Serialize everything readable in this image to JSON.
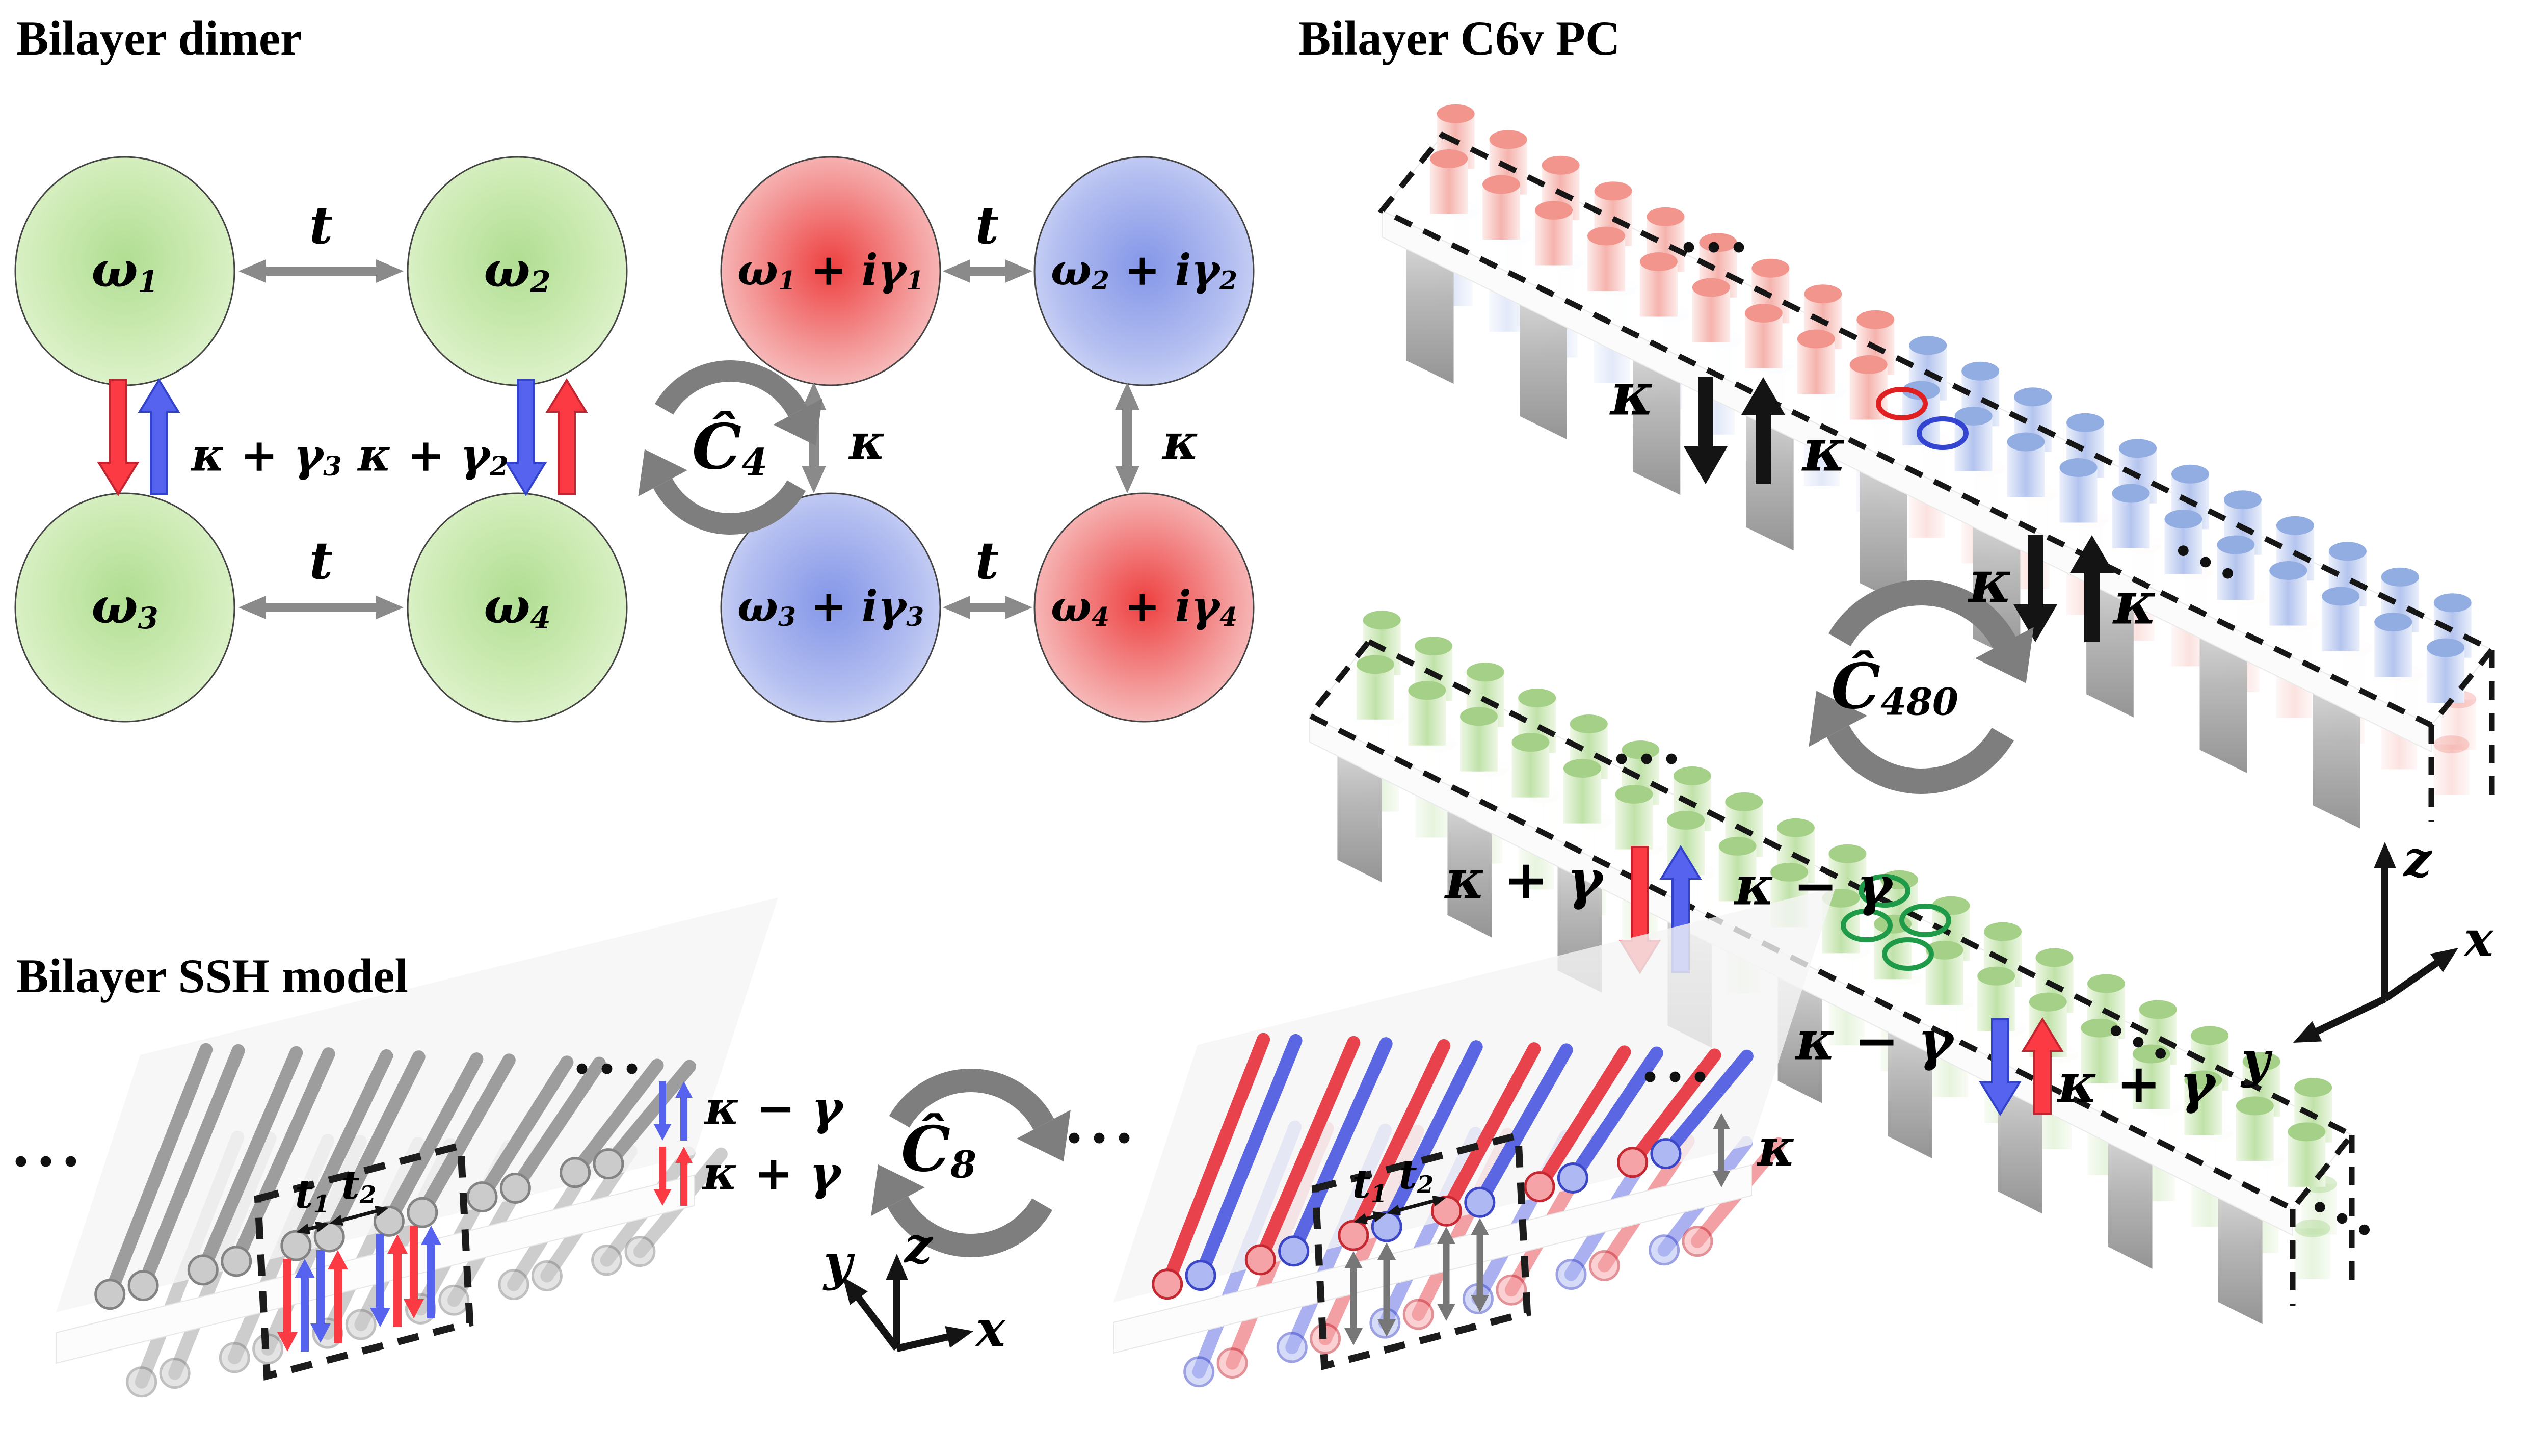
{
  "dimer": {
    "title": "Bilayer dimer",
    "hop_label": "t",
    "nodes": [
      {
        "base": "ω",
        "sub": "1"
      },
      {
        "base": "ω",
        "sub": "2"
      },
      {
        "base": "ω",
        "sub": "3"
      },
      {
        "base": "ω",
        "sub": "4"
      }
    ],
    "couplings": [
      {
        "main": "κ + γ",
        "sub": "3"
      },
      {
        "main": "κ + γ",
        "sub": "2"
      }
    ],
    "rotation": {
      "base": "Ĉ",
      "sub": "4"
    },
    "nodes_rotated": [
      {
        "p1": "ω",
        "s1": "1",
        "p2": " + iγ",
        "s2": "1"
      },
      {
        "p1": "ω",
        "s1": "2",
        "p2": " + iγ",
        "s2": "2"
      },
      {
        "p1": "ω",
        "s1": "3",
        "p2": " + iγ",
        "s2": "3"
      },
      {
        "p1": "ω",
        "s1": "4",
        "p2": " + iγ",
        "s2": "4"
      }
    ],
    "kappa": "κ"
  },
  "pc": {
    "title": "Bilayer C6v PC",
    "kappa": "κ",
    "rotation": {
      "base": "Ĉ",
      "sub": "480"
    },
    "coupling_plus": "κ + γ",
    "coupling_minus": "κ − γ",
    "axes": {
      "x": "x",
      "y": "y",
      "z": "z"
    },
    "ellipsis": "···"
  },
  "ssh": {
    "title": "Bilayer SSH model",
    "legend": [
      {
        "label": "κ − γ"
      },
      {
        "label": "κ + γ"
      }
    ],
    "rotation": {
      "base": "Ĉ",
      "sub": "8"
    },
    "t1": {
      "base": "t",
      "sub": "1"
    },
    "t2": {
      "base": "t",
      "sub": "2"
    },
    "kappa": "κ",
    "axes": {
      "x": "x",
      "y": "y",
      "z": "z"
    },
    "ellipsis": "···"
  },
  "colors": {
    "node_green_center": "#b3e096",
    "node_red_center": "#ee4343",
    "node_blue_center": "#8697e8",
    "arrow_red": "#fb3a44",
    "arrow_blue": "#5563ef",
    "arrow_gray": "#8a8a8a",
    "arrow_black": "#141414",
    "rotation_icon_gray": "#7e7e7e",
    "ring_green": "#1f9a48",
    "ring_red": "#e02020",
    "ring_blue": "#3344d0"
  }
}
